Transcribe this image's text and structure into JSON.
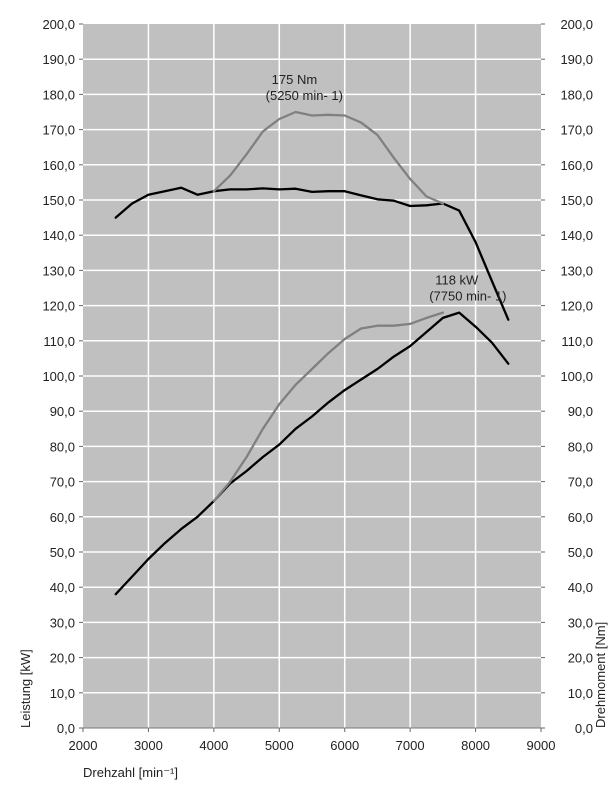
{
  "chart_data": {
    "type": "line",
    "xlabel": "Drehzahl [min⁻¹]",
    "ylabel_left": "Leistung [kW]",
    "ylabel_right": "Drehmoment [Nm]",
    "xlim": [
      2000,
      9000
    ],
    "ylim": [
      0,
      200
    ],
    "x_ticks": [
      "2000",
      "3000",
      "4000",
      "5000",
      "6000",
      "7000",
      "8000",
      "9000"
    ],
    "y_ticks": [
      "0,0",
      "10,0",
      "20,0",
      "30,0",
      "40,0",
      "50,0",
      "60,0",
      "70,0",
      "80,0",
      "90,0",
      "100,0",
      "110,0",
      "120,0",
      "130,0",
      "140,0",
      "150,0",
      "160,0",
      "170,0",
      "180,0",
      "190,0",
      "200,0"
    ],
    "grid": true,
    "colors": {
      "plot_bg": "#c0c0c0",
      "grid": "#ffffff",
      "black": "#000000",
      "gray": "#808080"
    },
    "series": [
      {
        "name": "torque-black",
        "color": "#000000",
        "x": [
          2500,
          2750,
          3000,
          3250,
          3500,
          3750,
          4000,
          4250,
          4500,
          4750,
          5000,
          5250,
          5500,
          5750,
          6000,
          6250,
          6500,
          6750,
          7000,
          7250,
          7500,
          7750,
          8000,
          8250,
          8500
        ],
        "y": [
          145,
          149,
          151.5,
          152.5,
          153.5,
          151.5,
          152.5,
          153,
          153,
          153.3,
          153,
          153.2,
          152.3,
          152.5,
          152.5,
          151.3,
          150.2,
          149.8,
          148.3,
          148.5,
          149,
          147,
          138,
          127,
          116
        ]
      },
      {
        "name": "torque-gray",
        "color": "#808080",
        "x": [
          4000,
          4250,
          4500,
          4750,
          5000,
          5250,
          5500,
          5750,
          6000,
          6250,
          6500,
          6750,
          7000,
          7250,
          7500
        ],
        "y": [
          152.5,
          157,
          163,
          169.5,
          173,
          175,
          174,
          174.2,
          174,
          172,
          168.5,
          162,
          156,
          151,
          149
        ]
      },
      {
        "name": "power-black",
        "color": "#000000",
        "x": [
          2500,
          2750,
          3000,
          3250,
          3500,
          3750,
          4000,
          4250,
          4500,
          4750,
          5000,
          5250,
          5500,
          5750,
          6000,
          6250,
          6500,
          6750,
          7000,
          7250,
          7500,
          7750,
          8000,
          8250,
          8500
        ],
        "y": [
          38,
          43,
          48,
          52.5,
          56.5,
          60,
          64.5,
          69.5,
          73,
          77,
          80.5,
          85,
          88.5,
          92.5,
          96,
          99,
          102,
          105.5,
          108.5,
          112.5,
          116.5,
          118,
          114,
          109.5,
          103.5
        ]
      },
      {
        "name": "power-gray",
        "color": "#808080",
        "x": [
          4000,
          4250,
          4500,
          4750,
          5000,
          5250,
          5500,
          5750,
          6000,
          6250,
          6500,
          6750,
          7000,
          7250,
          7500
        ],
        "y": [
          64.5,
          70,
          77,
          85,
          92,
          97.5,
          102,
          106.5,
          110.5,
          113.5,
          114.3,
          114.3,
          114.8,
          116.5,
          118
        ]
      }
    ],
    "annotations": [
      {
        "lines": [
          "175 Nm",
          "(5250 min- 1)"
        ],
        "x": 5250,
        "y": 175
      },
      {
        "lines": [
          "118 kW",
          "(7750 min- 1)"
        ],
        "x": 7750,
        "y": 118
      }
    ]
  }
}
